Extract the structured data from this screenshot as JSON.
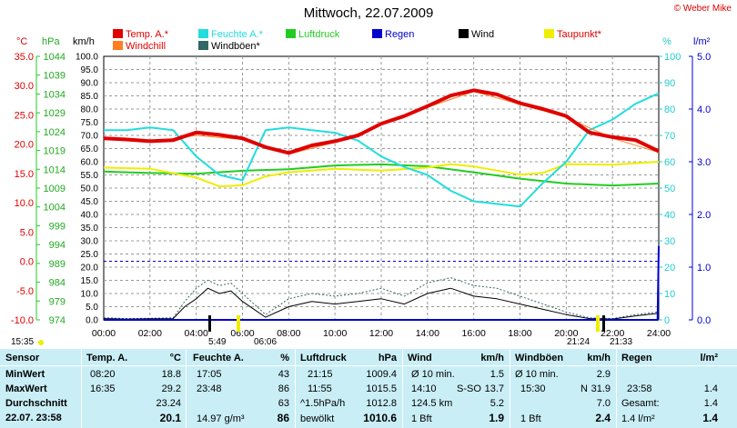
{
  "title": "Mittwoch, 22.07.2009",
  "copyright": "© Weber Mike",
  "legend": [
    {
      "label": "Temp. A.*",
      "color": "#e00000"
    },
    {
      "label": "Feuchte A.*",
      "color": "#22dddd"
    },
    {
      "label": "Luftdruck",
      "color": "#22cc22"
    },
    {
      "label": "Regen",
      "color": "#0000cc"
    },
    {
      "label": "Wind",
      "color": "#000000"
    },
    {
      "label": "Taupunkt*",
      "color": "#eeee00"
    },
    {
      "label": "Windchill",
      "color": "#ff7f20"
    },
    {
      "label": "Windböen*",
      "color": "#336666"
    }
  ],
  "units": {
    "temp": "°C",
    "pressure": "hPa",
    "wind": "km/h",
    "humidity": "%",
    "rain": "l/m²"
  },
  "chart_data": {
    "type": "line",
    "x_ticks": [
      "00:00",
      "02:00",
      "04:00",
      "06:00",
      "08:00",
      "10:00",
      "12:00",
      "14:00",
      "16:00",
      "18:00",
      "20:00",
      "22:00",
      "24:00"
    ],
    "axes": {
      "temp_c": {
        "range": [
          -10,
          35
        ],
        "ticks": [
          "35.0",
          "30.0",
          "25.0",
          "20.0",
          "15.0",
          "10.0",
          "5.0",
          "0.0",
          "-5.0",
          "-10.0"
        ]
      },
      "pressure_hpa": {
        "range": [
          974,
          1044
        ],
        "ticks": [
          "1044",
          "1039",
          "1034",
          "1029",
          "1024",
          "1019",
          "1014",
          "1009",
          "1004",
          "999",
          "994",
          "989",
          "984",
          "979",
          "974"
        ]
      },
      "wind_kmh": {
        "range": [
          0,
          100
        ],
        "ticks": [
          "100.0",
          "95.0",
          "90.0",
          "85.0",
          "80.0",
          "75.0",
          "70.0",
          "65.0",
          "60.0",
          "55.0",
          "50.0",
          "45.0",
          "40.0",
          "35.0",
          "30.0",
          "25.0",
          "20.0",
          "15.0",
          "10.0",
          "5.0",
          "0.0"
        ]
      },
      "humidity_pct": {
        "range": [
          0,
          100
        ],
        "ticks": [
          "100",
          "90",
          "80",
          "70",
          "60",
          "50",
          "40",
          "30",
          "20",
          "10",
          "0"
        ]
      },
      "rain_lm2": {
        "range": [
          0,
          5
        ],
        "ticks": [
          "5.0",
          "4.0",
          "3.0",
          "2.0",
          "1.0",
          "0.0"
        ]
      }
    },
    "reference_lines": {
      "temp_zero_c": 0
    },
    "series": [
      {
        "name": "Temp. A.*",
        "axis": "temp_c",
        "x_hours": [
          0,
          1,
          2,
          3,
          4,
          5,
          6,
          7,
          8,
          9,
          10,
          11,
          12,
          13,
          14,
          15,
          16,
          17,
          18,
          19,
          20,
          21,
          22,
          23,
          24
        ],
        "values": [
          21.0,
          20.8,
          20.5,
          20.7,
          22.0,
          21.6,
          21.0,
          19.5,
          18.5,
          19.8,
          20.5,
          21.5,
          23.5,
          24.8,
          26.5,
          28.3,
          29.2,
          28.5,
          27.0,
          26.0,
          24.8,
          22.0,
          21.2,
          20.7,
          18.8
        ]
      },
      {
        "name": "Feuchte A.*",
        "axis": "humidity_pct",
        "x_hours": [
          0,
          1,
          2,
          3,
          4,
          5,
          6,
          7,
          8,
          9,
          10,
          11,
          12,
          13,
          14,
          15,
          16,
          17,
          18,
          19,
          20,
          21,
          22,
          23,
          24
        ],
        "values": [
          72,
          72,
          73,
          72,
          62,
          55,
          53,
          72,
          73,
          72,
          71,
          68,
          62,
          58,
          55,
          49,
          45,
          44,
          43,
          52,
          60,
          72,
          76,
          82,
          86
        ]
      },
      {
        "name": "Luftdruck",
        "axis": "pressure_hpa",
        "x_hours": [
          0,
          2,
          4,
          6,
          8,
          10,
          12,
          14,
          16,
          18,
          20,
          22,
          24
        ],
        "values": [
          1013.4,
          1013.0,
          1012.8,
          1013.6,
          1014.0,
          1015.0,
          1015.3,
          1014.8,
          1013.2,
          1011.5,
          1010.2,
          1009.7,
          1010.2
        ]
      },
      {
        "name": "Taupunkt*",
        "axis": "temp_c",
        "x_hours": [
          0,
          2,
          4,
          5,
          6,
          7,
          8,
          10,
          12,
          14,
          15,
          16,
          18,
          19,
          20,
          22,
          24
        ],
        "values": [
          16.0,
          15.8,
          14.3,
          12.8,
          13.0,
          14.5,
          15.2,
          15.8,
          15.5,
          16.0,
          16.6,
          16.2,
          14.8,
          15.1,
          16.6,
          16.5,
          17.0
        ]
      },
      {
        "name": "Windchill",
        "axis": "temp_c",
        "x_hours": [
          0,
          2,
          4,
          6,
          8,
          10,
          12,
          14,
          16,
          18,
          20,
          22,
          24
        ],
        "values": [
          20.8,
          20.4,
          21.5,
          20.8,
          18.3,
          20.3,
          23.3,
          26.3,
          29.0,
          26.8,
          24.6,
          21.0,
          18.6
        ]
      },
      {
        "name": "Wind",
        "axis": "wind_kmh",
        "x_hours": [
          0,
          1,
          2,
          3,
          3.5,
          4,
          4.5,
          5,
          5.5,
          6,
          6.5,
          7,
          8,
          9,
          10,
          11,
          12,
          13,
          14,
          15,
          16,
          17,
          18,
          19,
          20,
          21,
          22,
          23,
          24
        ],
        "values": [
          0.5,
          0.3,
          0.4,
          0.5,
          5,
          8,
          12,
          10,
          11,
          7,
          4,
          1,
          5,
          7,
          6,
          7,
          8,
          6,
          10,
          12,
          9,
          8,
          6,
          4,
          2,
          0.5,
          0.3,
          1.5,
          2.5
        ]
      },
      {
        "name": "Windböen*",
        "axis": "wind_kmh",
        "x_hours": [
          0,
          1,
          2,
          3,
          3.5,
          4,
          4.5,
          5,
          5.5,
          6,
          6.5,
          7,
          8,
          9,
          10,
          11,
          12,
          13,
          14,
          15,
          16,
          17,
          18,
          19,
          20,
          21,
          22,
          23,
          24
        ],
        "values": [
          0.8,
          0.5,
          0.6,
          0.8,
          7,
          12,
          15,
          13,
          14,
          10,
          6,
          2,
          8,
          10,
          9,
          10,
          12,
          9,
          14,
          16,
          13,
          12,
          9,
          6,
          3,
          0.8,
          0.5,
          2,
          3
        ]
      },
      {
        "name": "Regen",
        "axis": "rain_lm2",
        "x_hours": [
          0,
          23.95,
          24
        ],
        "values": [
          0,
          0,
          1.4
        ]
      }
    ]
  },
  "sun": {
    "left_time": "15:35",
    "sunrise": "5:49",
    "sunrise2": "06:06",
    "sunset": "21:24",
    "sunset2": "21:33"
  },
  "table": {
    "row_labels": {
      "header": "Sensor",
      "min": "MinWert",
      "max": "MaxWert",
      "avg": "Durchschnitt",
      "current": "22.07. 23:58"
    },
    "temp": {
      "header": "Temp. A.",
      "unit": "°C",
      "min_time": "08:20",
      "min": "18.8",
      "max_time": "16:35",
      "max": "29.2",
      "avg": "23.24",
      "current": "20.1"
    },
    "humidity": {
      "header": "Feuchte A.",
      "unit": "%",
      "min_time": "17:05",
      "min": "43",
      "max_time": "23:48",
      "max": "86",
      "avg": "63",
      "abs_humidity": "14.97 g/m³",
      "current": "86"
    },
    "pressure": {
      "header": "Luftdruck",
      "unit": "hPa",
      "min_time": "21:15",
      "min": "1009.4",
      "max_time": "11:55",
      "max": "1015.5",
      "trend_label": "^1.5hPa/h",
      "avg": "1012.8",
      "forecast": "bewölkt",
      "current": "1010.6"
    },
    "wind": {
      "header": "Wind",
      "unit": "km/h",
      "min_label": "Ø 10 min.",
      "min": "1.5",
      "max_time": "14:10",
      "max_dir": "S-SO",
      "max": "13.7",
      "distance": "124.5 km",
      "avg": "5.2",
      "bft": "1 Bft",
      "current": "1.9"
    },
    "gusts": {
      "header": "Windböen",
      "unit": "km/h",
      "min_label": "Ø 10 min.",
      "min": "2.9",
      "max_time": "15:30",
      "max_dir": "N",
      "max": "31.9",
      "avg": "7.0",
      "bft": "1 Bft",
      "current": "2.4"
    },
    "rain": {
      "header": "Regen",
      "unit": "l/m²",
      "max_time": "23:58",
      "max": "1.4",
      "total_label": "Gesamt:",
      "total": "1.4",
      "current_label": "1.4 l/m²",
      "current": "1.4"
    }
  }
}
